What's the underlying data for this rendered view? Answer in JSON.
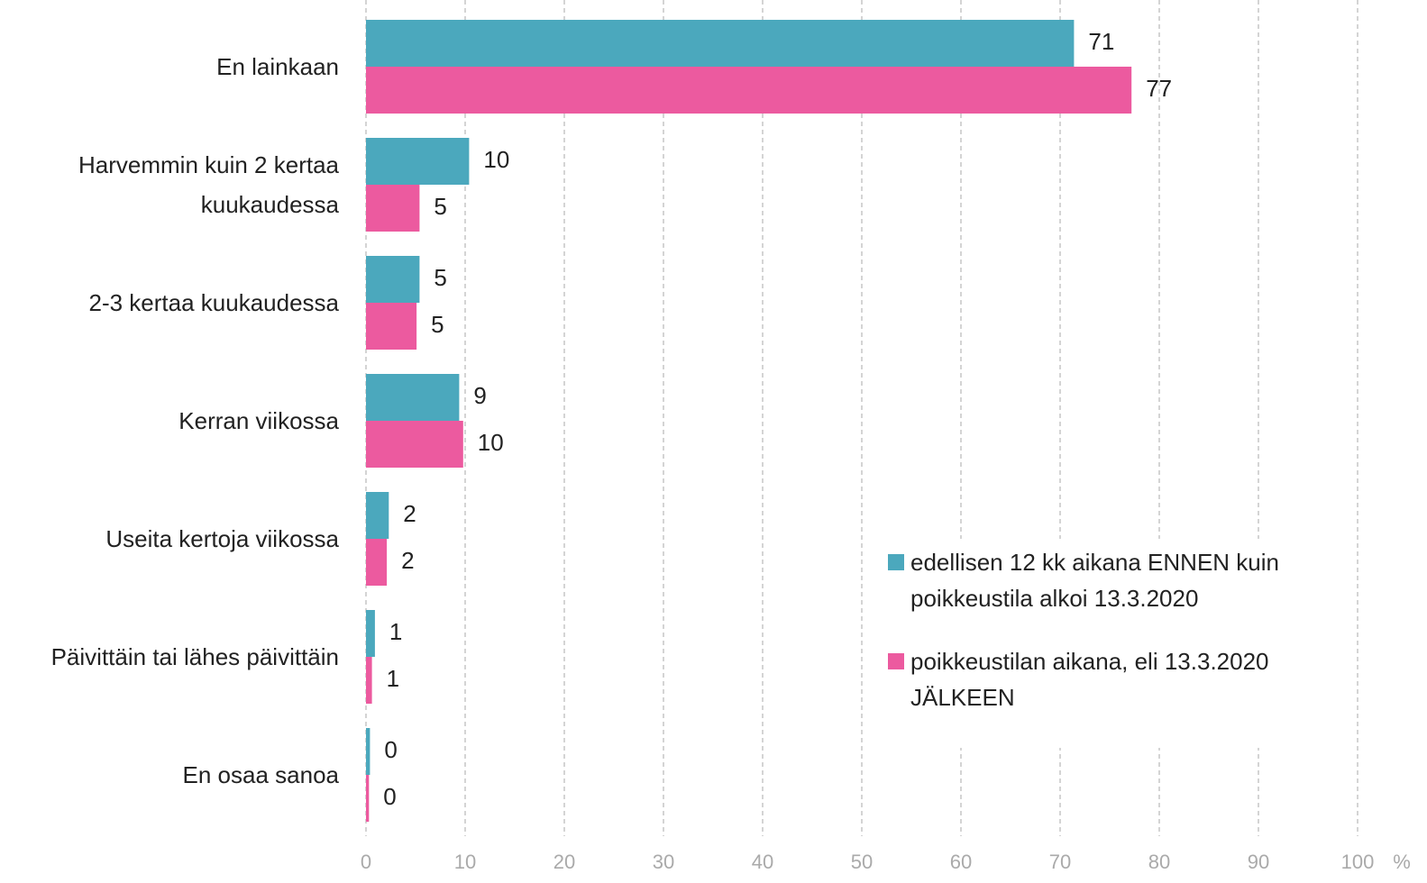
{
  "chart_data": {
    "type": "bar",
    "orientation": "horizontal",
    "categories": [
      "En lainkaan",
      "Harvemmin kuin 2 kertaa kuukaudessa",
      "2-3 kertaa kuukaudessa",
      "Kerran viikossa",
      "Useita kertoja viikossa",
      "Päivittäin tai lähes päivittäin",
      "En osaa sanoa"
    ],
    "series": [
      {
        "name": "edellisen 12 kk aikana ENNEN kuin poikkeustila alkoi 13.3.2020",
        "color": "#4ba8bd",
        "values": [
          71.4,
          10.4,
          5.4,
          9.4,
          2.3,
          0.9,
          0.4
        ],
        "value_labels": [
          "71",
          "10",
          "5",
          "9",
          "2",
          "1",
          "0"
        ]
      },
      {
        "name": "poikkeustilan aikana, eli 13.3.2020 JÄLKEEN",
        "color": "#ec5a9f",
        "values": [
          77.2,
          5.4,
          5.1,
          9.8,
          2.1,
          0.6,
          0.3
        ],
        "value_labels": [
          "77",
          "5",
          "5",
          "10",
          "2",
          "1",
          "0"
        ]
      }
    ],
    "xlabel": "%",
    "xlim": [
      0,
      100
    ],
    "xticks": [
      0,
      10,
      20,
      30,
      40,
      50,
      60,
      70,
      80,
      90,
      100
    ],
    "grid": true,
    "legend": "lower right"
  }
}
